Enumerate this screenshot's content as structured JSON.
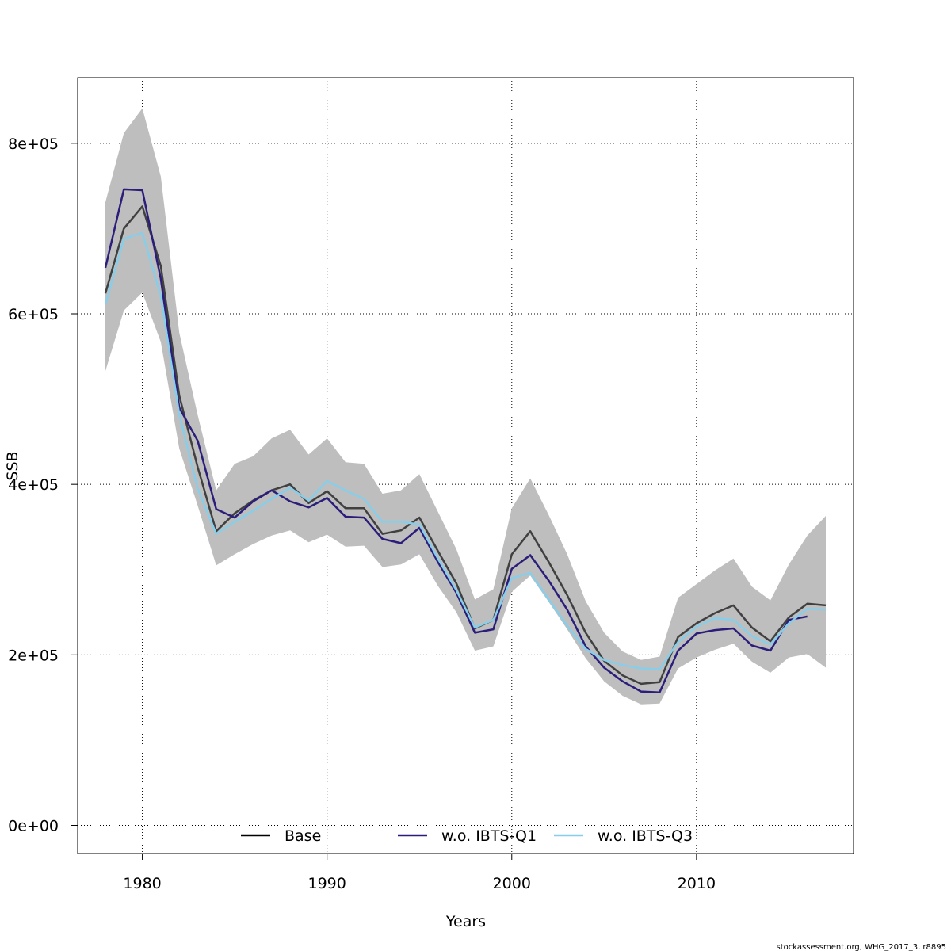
{
  "chart_data": {
    "type": "line",
    "title": "",
    "xlabel": "Years",
    "ylabel": "SSB",
    "xlim": [
      1976.5,
      2018.5
    ],
    "ylim": [
      -33000,
      877000
    ],
    "grid": true,
    "legend_position": "bottom",
    "x_ticks": [
      1980,
      1990,
      2000,
      2010
    ],
    "x_tick_labels": [
      "1980",
      "1990",
      "2000",
      "2010"
    ],
    "y_ticks": [
      0,
      200000,
      400000,
      600000,
      800000
    ],
    "y_tick_labels": [
      "0e+00",
      "2e+05",
      "4e+05",
      "6e+05",
      "8e+05"
    ],
    "x": [
      1978,
      1979,
      1980,
      1981,
      1982,
      1983,
      1984,
      1985,
      1986,
      1987,
      1988,
      1989,
      1990,
      1991,
      1992,
      1993,
      1994,
      1995,
      1996,
      1997,
      1998,
      1999,
      2000,
      2001,
      2002,
      2003,
      2004,
      2005,
      2006,
      2007,
      2008,
      2009,
      2010,
      2011,
      2012,
      2013,
      2014,
      2015,
      2016,
      2017
    ],
    "band": {
      "color": "#bebebe",
      "lower": [
        533000,
        604000,
        625000,
        567000,
        442000,
        375000,
        305000,
        318000,
        330000,
        340000,
        346000,
        332000,
        341000,
        327000,
        328000,
        303000,
        306000,
        318000,
        281000,
        250000,
        205000,
        210000,
        274000,
        293000,
        262000,
        230000,
        196000,
        169000,
        152000,
        142000,
        143000,
        184000,
        197000,
        206000,
        213000,
        192000,
        179000,
        197000,
        201000,
        185000
      ],
      "upper": [
        731000,
        812000,
        841000,
        761000,
        578000,
        481000,
        393000,
        424000,
        433000,
        454000,
        464000,
        435000,
        454000,
        426000,
        424000,
        389000,
        393000,
        412000,
        368000,
        324000,
        265000,
        277000,
        372000,
        407000,
        364000,
        318000,
        263000,
        226000,
        204000,
        194000,
        198000,
        267000,
        283000,
        299000,
        313000,
        280000,
        264000,
        306000,
        340000,
        363000
      ]
    },
    "series": [
      {
        "name": "Base",
        "color": "#404040",
        "values": [
          624000,
          700000,
          726000,
          656000,
          504000,
          420000,
          345000,
          366000,
          381000,
          393000,
          400000,
          378000,
          392000,
          372000,
          372000,
          342000,
          346000,
          361000,
          322000,
          284000,
          231000,
          241000,
          318000,
          345000,
          309000,
          270000,
          226000,
          193000,
          176000,
          166000,
          168000,
          221000,
          237000,
          249000,
          258000,
          232000,
          216000,
          244000,
          260000,
          258000
        ]
      },
      {
        "name": "w.o. IBTS-Q1",
        "color": "#2b1e7a",
        "values": [
          654000,
          746000,
          745000,
          641000,
          490000,
          451000,
          371000,
          361000,
          380000,
          393000,
          380000,
          373000,
          384000,
          362000,
          361000,
          336000,
          331000,
          349000,
          309000,
          273000,
          226000,
          230000,
          301000,
          317000,
          287000,
          253000,
          210000,
          185000,
          169000,
          157000,
          156000,
          205000,
          225000,
          229000,
          231000,
          211000,
          205000,
          241000,
          245000,
          null
        ]
      },
      {
        "name": "w.o. IBTS-Q3",
        "color": "#87ceeb",
        "values": [
          611000,
          688000,
          695000,
          621000,
          482000,
          395000,
          342000,
          356000,
          369000,
          383000,
          396000,
          381000,
          404000,
          393000,
          383000,
          356000,
          356000,
          353000,
          313000,
          276000,
          232000,
          241000,
          290000,
          296000,
          265000,
          234000,
          207000,
          194000,
          188000,
          184000,
          183000,
          215000,
          233000,
          243000,
          241000,
          222000,
          212000,
          237000,
          254000,
          253000
        ]
      }
    ],
    "credit": "stockassessment.org, WHG_2017_3, r8895"
  }
}
